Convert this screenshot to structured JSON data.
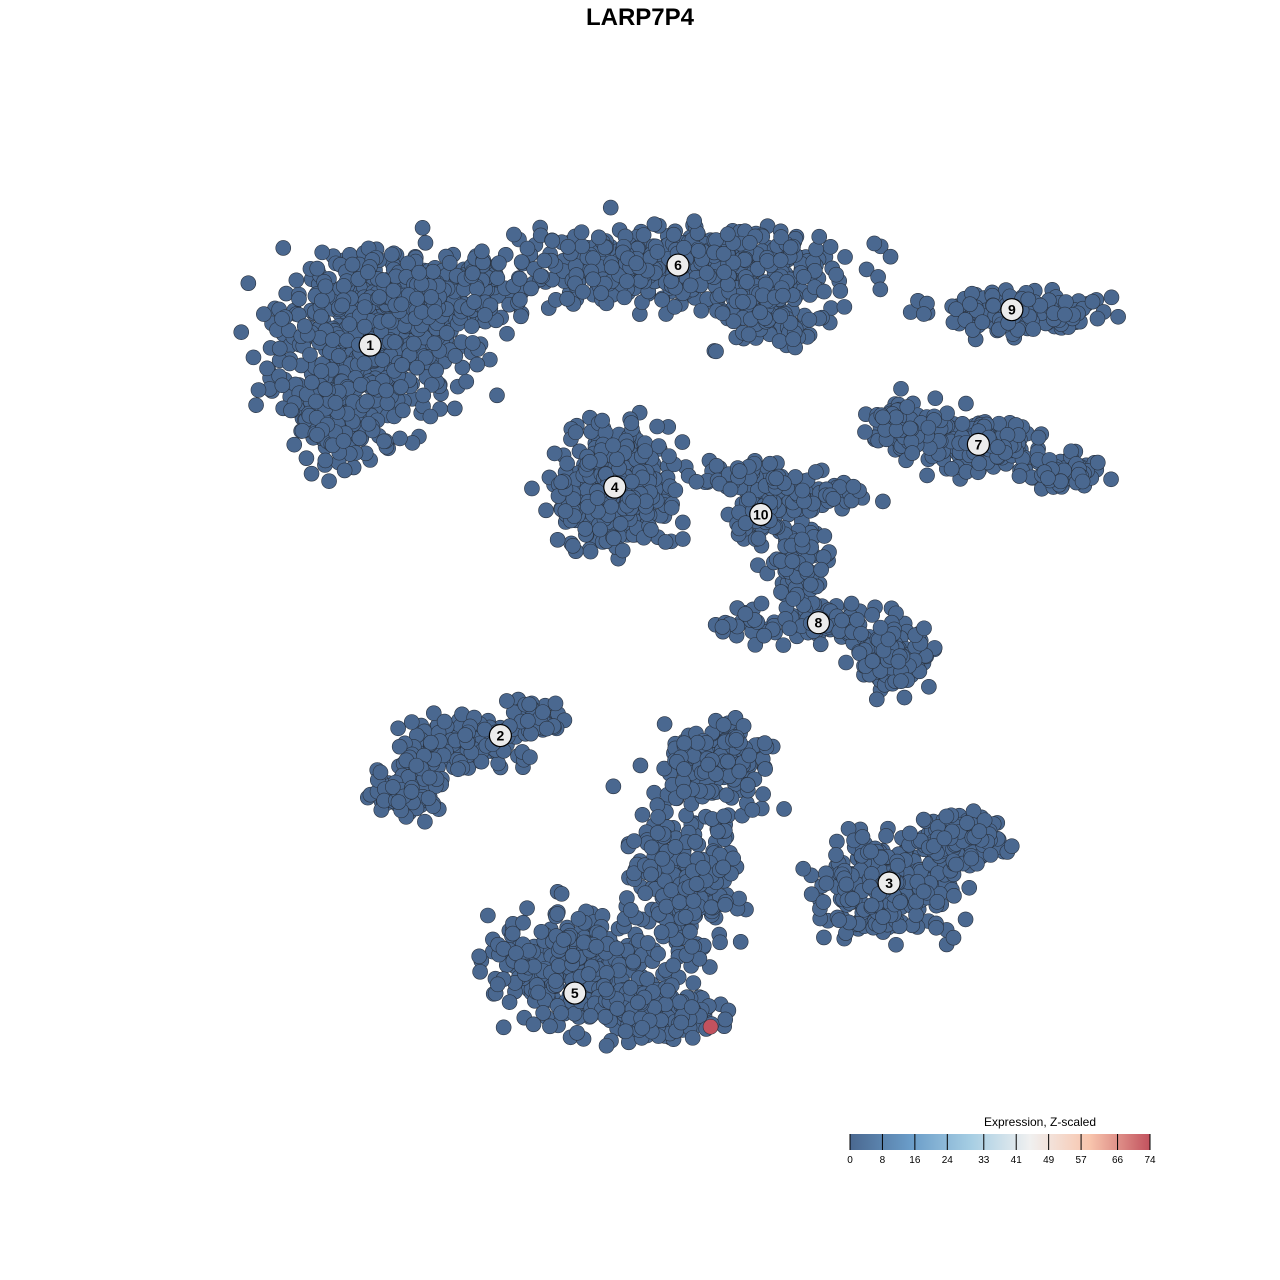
{
  "chart_data": {
    "type": "scatter",
    "title": "LARP7P4",
    "xlabel": "",
    "ylabel": "",
    "grid": false,
    "clusters": [
      {
        "label": "1",
        "x": -31.7,
        "y": 32.4
      },
      {
        "label": "2",
        "x": -17.7,
        "y": -10.5
      },
      {
        "label": "3",
        "x": 24.1,
        "y": -26.7
      },
      {
        "label": "4",
        "x": -5.4,
        "y": 16.8
      },
      {
        "label": "5",
        "x": -9.7,
        "y": -38.8
      },
      {
        "label": "6",
        "x": 1.4,
        "y": 41.2
      },
      {
        "label": "7",
        "x": 33.7,
        "y": 21.5
      },
      {
        "label": "8",
        "x": 16.5,
        "y": 1.9
      },
      {
        "label": "9",
        "x": 37.3,
        "y": 36.3
      },
      {
        "label": "10",
        "x": 10.3,
        "y": 13.8
      }
    ],
    "background_value": 0,
    "highlighted_points": [
      {
        "x": 4.9,
        "y": -42.5,
        "value": 74
      }
    ],
    "legend": {
      "title": "Expression, Z-scaled",
      "position": "bottom-right",
      "ticks": [
        "0",
        "8",
        "16",
        "24",
        "33",
        "41",
        "49",
        "57",
        "66",
        "74"
      ],
      "range": [
        0,
        74
      ],
      "colors": [
        "#4a6890",
        "#6a9cc8",
        "#a5cde3",
        "#f0f0f0",
        "#f8c5ad",
        "#c2525e"
      ]
    }
  }
}
